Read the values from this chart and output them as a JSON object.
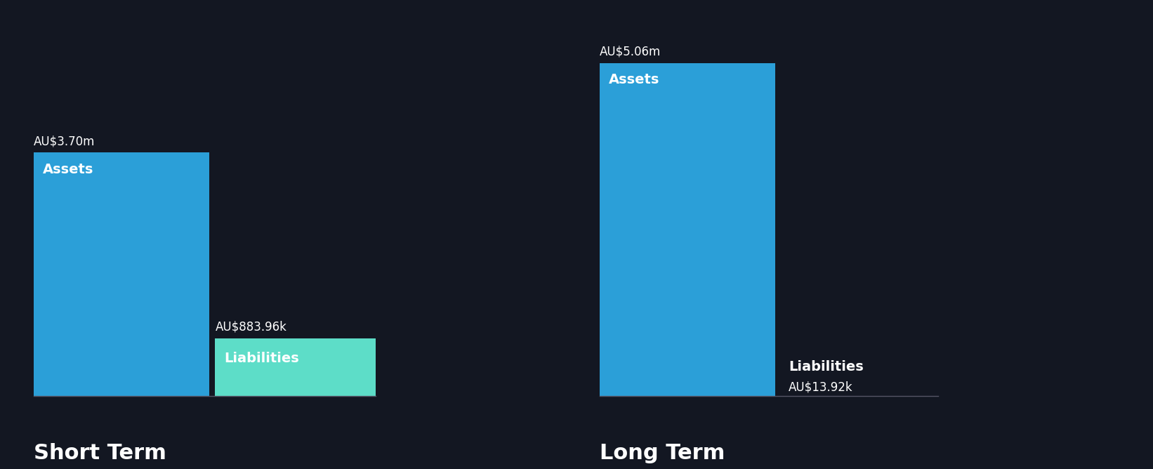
{
  "background_color": "#131722",
  "text_color": "#ffffff",
  "sections": [
    {
      "title": "Short Term",
      "title_fontsize": 22,
      "bars": [
        {
          "label": "Assets",
          "value": 3700000,
          "display": "AU$3.70m",
          "color": "#2b9fd8",
          "inner_label": true
        },
        {
          "label": "Liabilities",
          "value": 883960,
          "display": "AU$883.96k",
          "color": "#5dddc8",
          "inner_label": true
        }
      ]
    },
    {
      "title": "Long Term",
      "title_fontsize": 22,
      "bars": [
        {
          "label": "Assets",
          "value": 5060000,
          "display": "AU$5.06m",
          "color": "#2b9fd8",
          "inner_label": true
        },
        {
          "label": "Liabilities",
          "value": 13920,
          "display": "AU$13.92k",
          "color": "#2b9fd8",
          "inner_label": false
        }
      ]
    }
  ],
  "max_value": 5060000,
  "value_fontsize": 12,
  "inner_label_fontsize": 14
}
